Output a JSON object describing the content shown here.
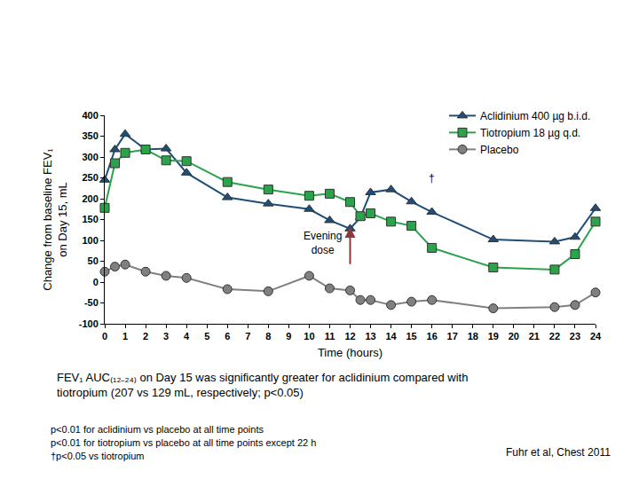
{
  "chart_data": {
    "type": "line",
    "y_label": [
      "Change from baseline FEV₁",
      "on Day 15, mL"
    ],
    "x_label": "Time (hours)",
    "x": [
      0,
      0.5,
      1,
      2,
      3,
      4,
      6,
      8,
      10,
      11,
      12,
      12.5,
      13,
      14,
      15,
      16,
      19,
      22,
      23,
      24
    ],
    "series": [
      {
        "name": "Aclidinium 400 µg b.i.d.",
        "color": "#1f4e79",
        "marker": "triangle",
        "values": [
          245,
          318,
          355,
          318,
          320,
          262,
          203,
          188,
          175,
          148,
          128,
          155,
          215,
          222,
          193,
          168,
          102,
          97,
          108,
          177
        ]
      },
      {
        "name": "Tiotropium 18 µg q.d.",
        "color": "#2aa34a",
        "marker": "square",
        "values": [
          178,
          285,
          310,
          318,
          292,
          290,
          240,
          222,
          207,
          212,
          192,
          158,
          165,
          145,
          135,
          82,
          35,
          30,
          67,
          145
        ]
      },
      {
        "name": "Placebo",
        "color": "#808080",
        "marker": "circle",
        "values": [
          25,
          37,
          42,
          25,
          15,
          10,
          -17,
          -22,
          15,
          -15,
          -20,
          -43,
          -43,
          -55,
          -47,
          -43,
          -63,
          -60,
          -55,
          -25
        ]
      }
    ],
    "xlim": [
      0,
      24
    ],
    "xticks": [
      0,
      1,
      2,
      3,
      4,
      5,
      6,
      7,
      8,
      9,
      10,
      11,
      12,
      13,
      14,
      15,
      16,
      17,
      18,
      19,
      20,
      21,
      22,
      23,
      24
    ],
    "ylim": [
      -100,
      400
    ],
    "yticks": [
      -100,
      -50,
      0,
      50,
      100,
      150,
      200,
      250,
      300,
      350,
      400
    ],
    "grid": false,
    "legend": "top right",
    "annotations": [
      {
        "text": "Evening dose",
        "x": 12,
        "y": 132,
        "arrow_from": 40
      },
      {
        "text": "†",
        "x": 16,
        "y": 222
      }
    ],
    "caption": [
      "FEV₁ AUC₍₁₂₋₂₄₎ on Day 15 was significantly greater for aclidinium compared with",
      "tiotropium (207 vs 129 mL, respectively; p<0.05)"
    ],
    "notes": [
      "p<0.01 for aclidinium vs placebo at all time points",
      "p<0.01 for tiotropium vs placebo at all time points except 22 h",
      "†p<0.05 vs tiotropium"
    ],
    "source": "Fuhr et al, Chest 2011"
  }
}
